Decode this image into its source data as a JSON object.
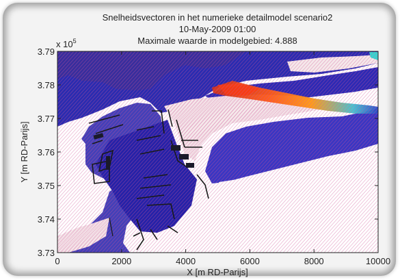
{
  "chart_data": {
    "type": "vector-field",
    "title": [
      "Snelheidsvectoren in het numerieke detailmodel scenario2",
      "10-May-2009 01:00",
      "Maximale waarde in modelgebied: 4.888"
    ],
    "xlabel": "X [m RD-Parijs]",
    "ylabel": "Y [m RD-Parijs]",
    "xlim": [
      0,
      10000
    ],
    "ylim": [
      373000,
      379000
    ],
    "x_ticks": [
      "0",
      "2000",
      "4000",
      "6000",
      "8000",
      "10000"
    ],
    "y_ticks": [
      "3.73",
      "3.74",
      "3.75",
      "3.76",
      "3.77",
      "3.78",
      "3.79"
    ],
    "y_exponent": "x 10",
    "y_exponent_power": "5",
    "max_value": 4.888,
    "grid": false,
    "legend": "none",
    "colors": {
      "low": "#1f22a8",
      "mid": "#5a4fd0",
      "high": "#e23a1c",
      "peak": "#ff8a00",
      "cyan": "#35d6d0",
      "land": "#ffffff",
      "dry": "#f5e8ea"
    }
  }
}
